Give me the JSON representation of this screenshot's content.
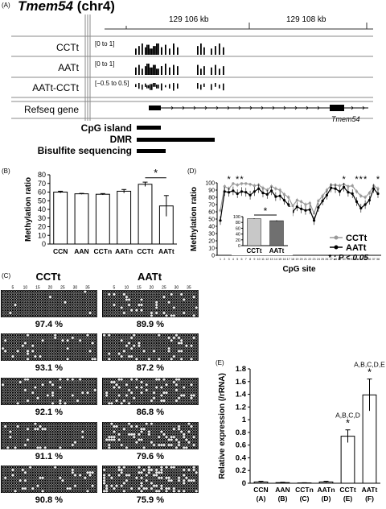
{
  "panelA": {
    "letter": "(A)",
    "gene": "Tmem54",
    "chrom": "(chr4)",
    "coord1": "129 106 kb",
    "coord2": "129 108 kb",
    "tracks": [
      {
        "name": "CCTt",
        "range": "[0 to 1]"
      },
      {
        "name": "AATt",
        "range": "[0 to 1]"
      },
      {
        "name": "AATt-CCTt",
        "range": "[−0.5 to 0.5]"
      }
    ],
    "refseq_label": "Refseq gene",
    "gene_label": "Tmem54",
    "features": [
      {
        "label": "CpG island"
      },
      {
        "label": "DMR"
      },
      {
        "label": "Bisulfite sequencing"
      }
    ]
  },
  "panelB": {
    "letter": "(B)",
    "chart_data": {
      "type": "bar",
      "categories": [
        "CCN",
        "AAN",
        "CCTn",
        "AATn",
        "CCTt",
        "AATt"
      ],
      "values": [
        60,
        58,
        57.5,
        61,
        69,
        44
      ],
      "errors": [
        1,
        0.5,
        0.8,
        2,
        2.5,
        12
      ],
      "ylabel": "Methylation ratio",
      "ylim": [
        0,
        80
      ],
      "yticks": [
        0,
        10,
        20,
        30,
        40,
        50,
        60,
        70,
        80
      ],
      "significance": "*"
    }
  },
  "panelC": {
    "letter": "(C)",
    "col_titles": [
      "CCTt",
      "AATt"
    ],
    "tick_labels": [
      "5",
      "10",
      "15",
      "20",
      "25",
      "30",
      "35"
    ],
    "percentages": [
      [
        "97.4 %",
        "89.9 %"
      ],
      [
        "93.1 %",
        "87.2 %"
      ],
      [
        "92.1 %",
        "86.8 %"
      ],
      [
        "91.1 %",
        "79.6 %"
      ],
      [
        "90.8 %",
        "75.9 %"
      ]
    ],
    "methylated_fraction": [
      [
        0.974,
        0.899
      ],
      [
        0.931,
        0.872
      ],
      [
        0.921,
        0.868
      ],
      [
        0.911,
        0.796
      ],
      [
        0.908,
        0.759
      ]
    ]
  },
  "panelD": {
    "letter": "(D)",
    "chart_data": {
      "type": "line",
      "x": [
        1,
        2,
        3,
        4,
        5,
        6,
        7,
        8,
        9,
        10,
        11,
        12,
        13,
        14,
        15,
        16,
        17,
        18,
        19,
        20,
        21,
        22,
        23,
        24,
        25,
        26,
        27,
        28,
        29,
        30,
        31,
        32,
        33,
        34,
        35,
        36,
        37,
        38
      ],
      "xticks": [
        "1",
        "2",
        "3",
        "4",
        "5",
        "6",
        "7",
        "8",
        "9",
        "10",
        "11",
        "12",
        "13",
        "14",
        "15",
        "16",
        "17",
        "18",
        "19",
        "20",
        "21",
        "22",
        "23",
        "24",
        "25",
        "26",
        "27",
        "28",
        "29",
        "30",
        "31",
        "32",
        "33",
        "34",
        "35",
        "36",
        "37",
        "38"
      ],
      "xlabel": "CpG site",
      "ylabel": "Methylation ratio",
      "ylim": [
        0,
        100
      ],
      "yticks": [
        0,
        10,
        20,
        30,
        40,
        50,
        60,
        70,
        80,
        90,
        100
      ],
      "series": [
        {
          "name": "CCTt",
          "color": "#9a9a9a",
          "values": [
            62,
            95,
            92,
            99,
            97,
            99,
            99,
            98,
            96,
            97,
            93,
            90,
            95,
            92,
            90,
            84,
            80,
            68,
            76,
            74,
            70,
            72,
            58,
            75,
            82,
            90,
            97,
            97,
            96,
            98,
            95,
            96,
            88,
            82,
            80,
            86,
            96,
            92
          ]
        },
        {
          "name": "AATt",
          "color": "#000000",
          "values": [
            48,
            88,
            87,
            89,
            85,
            88,
            87,
            83,
            88,
            92,
            86,
            84,
            89,
            81,
            82,
            76,
            70,
            60,
            67,
            64,
            62,
            63,
            48,
            66,
            75,
            83,
            93,
            92,
            88,
            94,
            87,
            85,
            74,
            65,
            70,
            76,
            92,
            85
          ]
        }
      ],
      "significant_sites": [
        3,
        5,
        6,
        30,
        33,
        34,
        35,
        38
      ],
      "legend_note": "* : P < 0.05",
      "inset": {
        "categories": [
          "CCTt",
          "AATt"
        ],
        "values": [
          93,
          86
        ],
        "errors": [
          1,
          1.5
        ],
        "ylim": [
          0,
          100
        ],
        "yticks": [
          0,
          20,
          40,
          60,
          80,
          100
        ],
        "colors": [
          "#c8c8c8",
          "#707070"
        ],
        "significance": "*"
      }
    }
  },
  "panelE": {
    "letter": "(E)",
    "chart_data": {
      "type": "bar",
      "categories": [
        "CCN",
        "AAN",
        "CCTn",
        "AATn",
        "CCTt",
        "AATt"
      ],
      "group_letters": [
        "(A)",
        "(B)",
        "(C)",
        "(D)",
        "(E)",
        "(F)"
      ],
      "values": [
        0.02,
        0.01,
        0.005,
        0.02,
        0.74,
        1.39
      ],
      "errors": [
        0.01,
        0.005,
        0.003,
        0.01,
        0.1,
        0.25
      ],
      "ylabel": "Relative expression (/rRNA)",
      "ylim": [
        0,
        1.8
      ],
      "yticks": [
        "0",
        "0.2",
        "0.4",
        "0.6",
        "0.8",
        "1",
        "1.2",
        "1.4",
        "1.6",
        "1.8"
      ],
      "annotations": [
        {
          "index": 4,
          "text": "A,B,C,D",
          "mark": "*"
        },
        {
          "index": 5,
          "text": "A,B,C,D,E",
          "mark": "*"
        }
      ]
    }
  }
}
